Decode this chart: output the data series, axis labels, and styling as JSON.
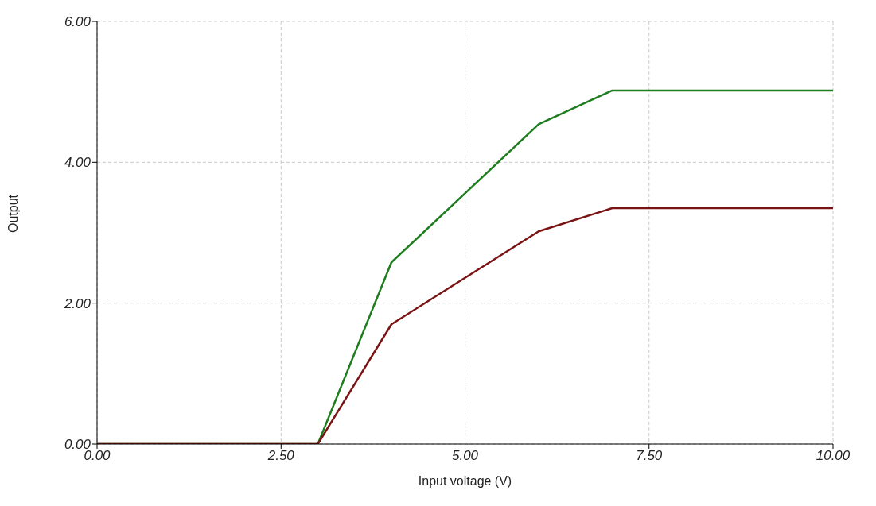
{
  "chart_data": {
    "type": "line",
    "xlabel": "Input voltage (V)",
    "ylabel": "Output",
    "xlim": [
      0,
      10
    ],
    "ylim": [
      0,
      6
    ],
    "xticks": [
      {
        "value": 0,
        "label": "0.00"
      },
      {
        "value": 2.5,
        "label": "2.50"
      },
      {
        "value": 5,
        "label": "5.00"
      },
      {
        "value": 7.5,
        "label": "7.50"
      },
      {
        "value": 10,
        "label": "10.00"
      }
    ],
    "yticks": [
      {
        "value": 0,
        "label": "0.00"
      },
      {
        "value": 2,
        "label": "2.00"
      },
      {
        "value": 4,
        "label": "4.00"
      },
      {
        "value": 6,
        "label": "6.00"
      }
    ],
    "grid": true,
    "line_style": "solid",
    "marker": "none",
    "series": [
      {
        "color": "#1e7d1e",
        "x": [
          0,
          3,
          4,
          6,
          7,
          10
        ],
        "values": [
          0,
          0,
          2.58,
          4.54,
          5.02,
          5.02
        ]
      },
      {
        "color": "#7a1414",
        "x": [
          0,
          3,
          4,
          6,
          7,
          10
        ],
        "values": [
          0,
          0,
          1.7,
          3.02,
          3.35,
          3.35
        ]
      }
    ]
  }
}
